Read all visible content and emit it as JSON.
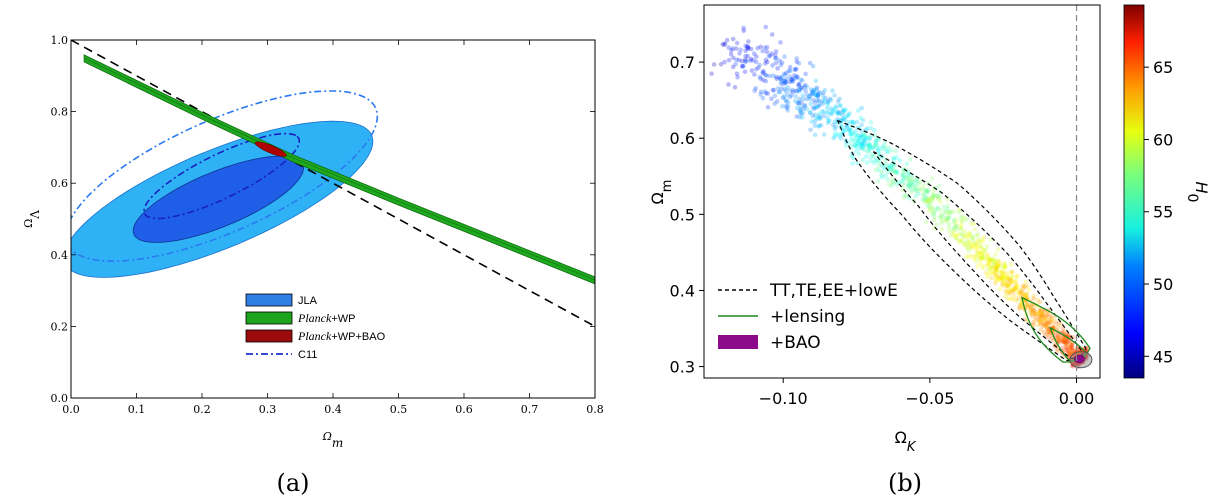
{
  "chart_data": [
    {
      "type": "contour",
      "caption": "(a)",
      "xlabel": "Ωm",
      "ylabel": "ΩΛ",
      "xlim": [
        0.0,
        0.8
      ],
      "ylim": [
        0.0,
        1.0
      ],
      "xticks": [
        "0.0",
        "0.1",
        "0.2",
        "0.3",
        "0.4",
        "0.5",
        "0.6",
        "0.7",
        "0.8"
      ],
      "yticks": [
        "0.0",
        "0.2",
        "0.4",
        "0.6",
        "0.8",
        "1.0"
      ],
      "flat_line": [
        [
          0.0,
          1.0
        ],
        [
          0.8,
          0.2
        ]
      ],
      "series": [
        {
          "name": "JLA",
          "kind": "ellipse",
          "color": "#3a8fe8",
          "center": [
            0.225,
            0.555
          ],
          "outer_axes": [
            0.3,
            0.115
          ],
          "inner_axes": [
            0.165,
            0.065
          ],
          "angle_deg": 42
        },
        {
          "name": "Planck+WP",
          "kind": "band",
          "color": "#1c9a1c",
          "points": [
            [
              0.02,
              0.95
            ],
            [
              0.2,
              0.79
            ],
            [
              0.34,
              0.67
            ],
            [
              0.5,
              0.55
            ],
            [
              0.65,
              0.44
            ],
            [
              0.8,
              0.33
            ]
          ]
        },
        {
          "name": "Planck+WP+BAO",
          "kind": "ellipse",
          "color": "#a00000",
          "center": [
            0.305,
            0.695
          ],
          "outer_axes": [
            0.03,
            0.009
          ],
          "angle_deg": -40
        },
        {
          "name": "C11",
          "kind": "dashdot",
          "color": "#1a2fd0",
          "center": [
            0.23,
            0.62
          ],
          "outer_axes": [
            0.31,
            0.13
          ],
          "inner_axes": [
            0.16,
            0.05
          ],
          "angle_deg": 45
        }
      ],
      "legend": [
        {
          "label": "JLA",
          "color": "#2f7fe4",
          "style": "box"
        },
        {
          "label": "Planck+WP",
          "color": "#1ca51c",
          "style": "box"
        },
        {
          "label": "Planck+WP+BAO",
          "color": "#9a0c0c",
          "style": "box"
        },
        {
          "label": "C11",
          "color": "#1a2fd0",
          "style": "dashdot"
        }
      ],
      "legend_italic_prefix": "Planck",
      "legend_location": "lower-center"
    },
    {
      "type": "scatter",
      "caption": "(b)",
      "xlabel": "ΩK",
      "ylabel": "Ωm",
      "xlim": [
        -0.127,
        0.008
      ],
      "ylim": [
        0.285,
        0.775
      ],
      "xticks": [
        "−0.10",
        "−0.05",
        "0.00"
      ],
      "xtick_values": [
        -0.1,
        -0.05,
        0.0
      ],
      "yticks": [
        "0.3",
        "0.4",
        "0.5",
        "0.6",
        "0.7"
      ],
      "ytick_values": [
        0.3,
        0.4,
        0.5,
        0.6,
        0.7
      ],
      "colorbar": {
        "label": "H0",
        "min": 43.5,
        "max": 69.3,
        "ticks": [
          45,
          50,
          55,
          60,
          65
        ]
      },
      "ridge": [
        [
          -0.12,
          0.725
        ],
        [
          -0.1,
          0.675
        ],
        [
          -0.085,
          0.635
        ],
        [
          -0.07,
          0.585
        ],
        [
          -0.05,
          0.52
        ],
        [
          -0.03,
          0.44
        ],
        [
          -0.015,
          0.375
        ],
        [
          0.0,
          0.315
        ],
        [
          0.002,
          0.308
        ]
      ],
      "series": [
        {
          "name": "TT,TE,EE+lowE",
          "style": "dashed",
          "color": "#000000"
        },
        {
          "name": "+lensing",
          "style": "solid",
          "color": "#1f8a1f"
        },
        {
          "name": "+BAO",
          "style": "filled",
          "color": "#8a0a8a"
        }
      ],
      "vline_x": 0.0,
      "legend_location": "lower-left"
    }
  ]
}
